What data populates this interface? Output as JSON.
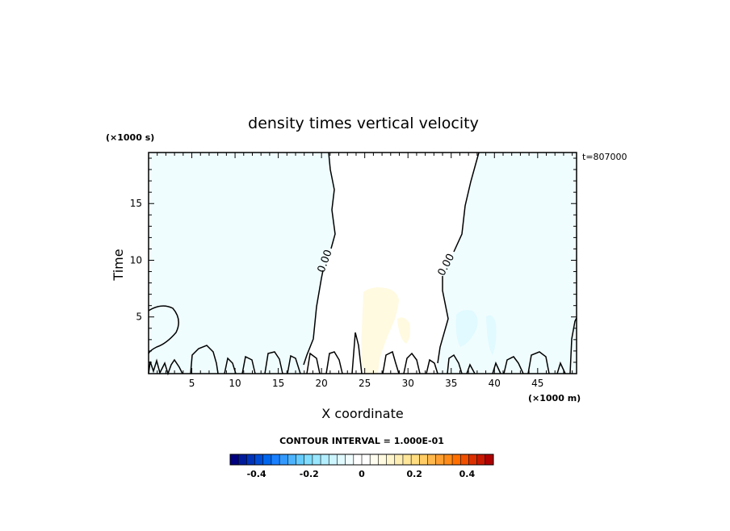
{
  "chart_data": {
    "type": "heatmap",
    "title": "density times vertical velocity",
    "xlabel": "X coordinate",
    "ylabel": "Time",
    "x_unit": "(×1000 m)",
    "y_unit": "(×1000 s)",
    "time_stamp": "t=807000",
    "xlim": [
      0,
      49.5
    ],
    "ylim": [
      0,
      19.5
    ],
    "x_ticks": [
      5,
      10,
      15,
      20,
      25,
      30,
      35,
      40,
      45
    ],
    "y_ticks": [
      5,
      10,
      15
    ],
    "contour_label": "0.00",
    "contour_interval_text": "CONTOUR INTERVAL = 1.000E-01",
    "colorbar": {
      "min": -0.5,
      "max": 0.5,
      "tick_values": [
        -0.4,
        -0.2,
        0,
        0.2,
        0.4
      ],
      "tick_labels": [
        "-0.4",
        "-0.2",
        "0",
        "0.2",
        "0.4"
      ],
      "colors": [
        "#000080",
        "#001a9c",
        "#0033b8",
        "#004cd4",
        "#0066ee",
        "#1a80ff",
        "#3399ff",
        "#4db3ff",
        "#66ccff",
        "#80ddff",
        "#99e6ff",
        "#b3eeff",
        "#ccf5ff",
        "#e0faff",
        "#f0fdff",
        "#ffffff",
        "#ffffff",
        "#fffdf0",
        "#fffae0",
        "#fff5cc",
        "#ffeeb3",
        "#ffe699",
        "#ffdd80",
        "#ffcc66",
        "#ffb84d",
        "#ffa033",
        "#ff8c1a",
        "#ff7000",
        "#f05000",
        "#dd3000",
        "#c81800",
        "#b00000"
      ]
    }
  }
}
